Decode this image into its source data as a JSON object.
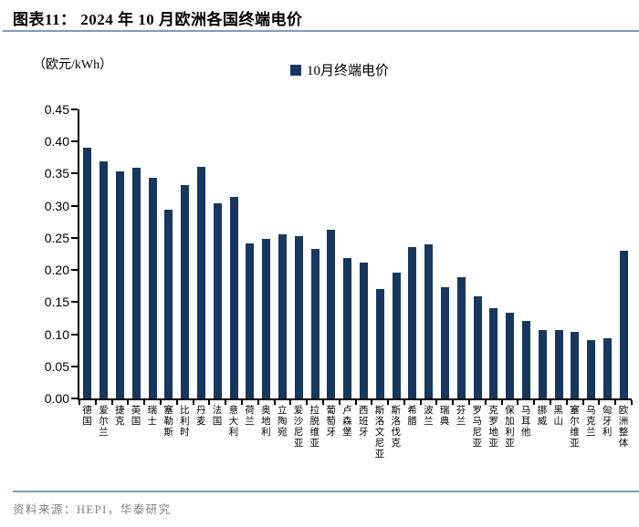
{
  "header": {
    "figure_title": "图表11： 2024 年 10 月欧洲各国终端电价"
  },
  "chart": {
    "unit_label": "（欧元/kWh）",
    "legend_label": "10月终端电价"
  },
  "chart_data": {
    "type": "bar",
    "title": "2024 年 10 月欧洲各国终端电价",
    "ylabel": "欧元/kWh",
    "xlabel": "",
    "legend": [
      "10月终端电价"
    ],
    "legend_position": "top",
    "grid": false,
    "bar_color": "#17375e",
    "ylim": [
      0,
      0.45
    ],
    "y_tick_step": 0.05,
    "y_tick_labels": [
      "0.45",
      "0.40",
      "0.35",
      "0.30",
      "0.25",
      "0.20",
      "0.15",
      "0.10",
      "0.05",
      "0.00"
    ],
    "categories": [
      "德国",
      "爱尔兰",
      "捷克",
      "英国",
      "瑞士",
      "塞勒斯",
      "比利时",
      "丹麦",
      "法国",
      "意大利",
      "荷兰",
      "奥地利",
      "立陶宛",
      "爱沙尼亚",
      "拉脱维亚",
      "葡萄牙",
      "卢森堡",
      "西班牙",
      "斯洛文尼亚",
      "斯洛伐克",
      "希腊",
      "波兰",
      "瑞典",
      "芬兰",
      "罗马尼亚",
      "克罗地亚",
      "保加利亚",
      "马耳他",
      "挪威",
      "黑山",
      "塞尔维亚",
      "乌克兰",
      "匈牙利",
      "欧洲整体"
    ],
    "values": [
      0.391,
      0.369,
      0.353,
      0.359,
      0.343,
      0.294,
      0.332,
      0.361,
      0.304,
      0.314,
      0.242,
      0.249,
      0.256,
      0.252,
      0.233,
      0.262,
      0.218,
      0.211,
      0.171,
      0.196,
      0.235,
      0.24,
      0.173,
      0.189,
      0.159,
      0.141,
      0.134,
      0.121,
      0.106,
      0.107,
      0.103,
      0.091,
      0.094,
      0.23
    ]
  },
  "footer": {
    "source_text": "资料来源：HEPI，华泰研究"
  },
  "colors": {
    "bar": "#17375e",
    "rule": "#7e9ac0",
    "footer_text": "#7f7f7f"
  }
}
